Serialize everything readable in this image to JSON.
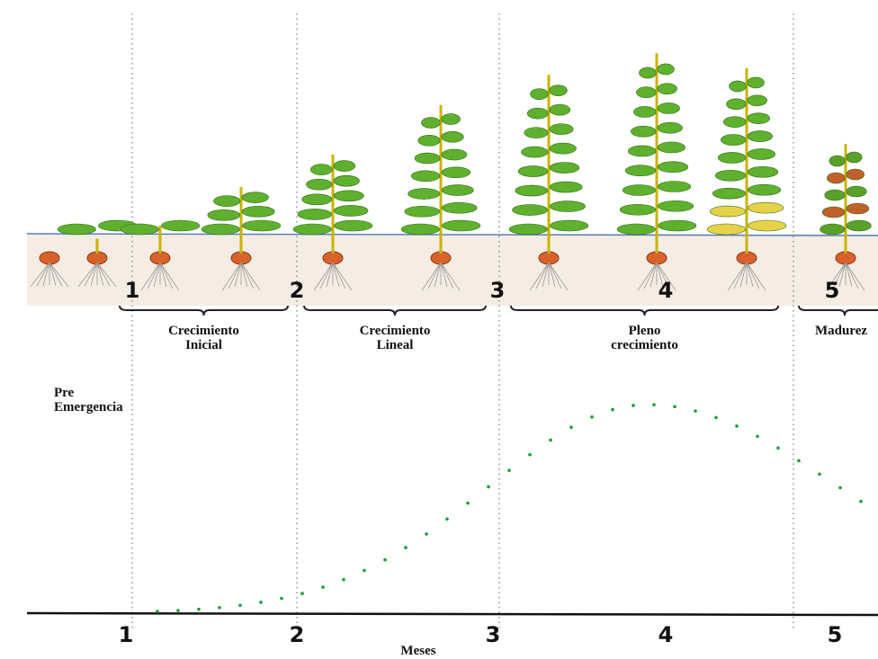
{
  "stage_markers": [
    "1",
    "2",
    "3",
    "4",
    "5"
  ],
  "stages": [
    {
      "lines": [
        "Crecimiento",
        "Inicial"
      ]
    },
    {
      "lines": [
        "Crecimiento",
        "Lineal"
      ]
    },
    {
      "lines": [
        "Pleno",
        "crecimiento"
      ]
    },
    {
      "lines": [
        "Madurez"
      ]
    }
  ],
  "pre_emergence": [
    "Pre",
    "Emergencia"
  ],
  "x_axis": {
    "title": "Meses",
    "ticks": [
      "1",
      "2",
      "3",
      "4",
      "5"
    ]
  }
}
